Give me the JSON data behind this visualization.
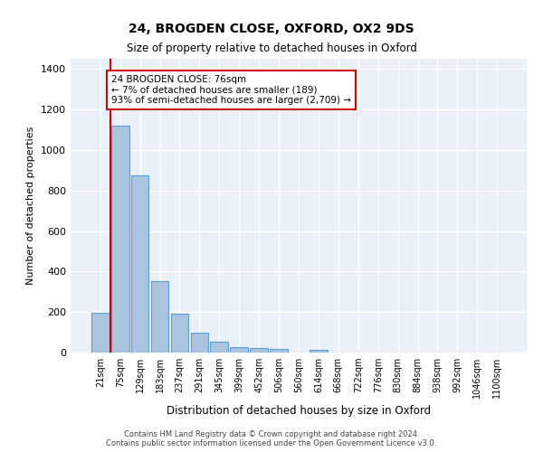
{
  "title": "24, BROGDEN CLOSE, OXFORD, OX2 9DS",
  "subtitle": "Size of property relative to detached houses in Oxford",
  "xlabel": "Distribution of detached houses by size in Oxford",
  "ylabel": "Number of detached properties",
  "footer_line1": "Contains HM Land Registry data © Crown copyright and database right 2024.",
  "footer_line2": "Contains public sector information licensed under the Open Government Licence v3.0.",
  "categories": [
    "21sqm",
    "75sqm",
    "129sqm",
    "183sqm",
    "237sqm",
    "291sqm",
    "345sqm",
    "399sqm",
    "452sqm",
    "506sqm",
    "560sqm",
    "614sqm",
    "668sqm",
    "722sqm",
    "776sqm",
    "830sqm",
    "884sqm",
    "938sqm",
    "992sqm",
    "1046sqm",
    "1100sqm"
  ],
  "values": [
    197,
    1120,
    875,
    353,
    192,
    100,
    52,
    25,
    22,
    17,
    0,
    14,
    0,
    0,
    0,
    0,
    0,
    0,
    0,
    0,
    0
  ],
  "bar_color": "#aac4e0",
  "bar_edge_color": "#5a9fd4",
  "background_color": "#eaf0f8",
  "grid_color": "#ffffff",
  "vline_color": "#cc0000",
  "annotation_text": "24 BROGDEN CLOSE: 76sqm\n← 7% of detached houses are smaller (189)\n93% of semi-detached houses are larger (2,709) →",
  "annotation_box_color": "#cc0000",
  "ylim": [
    0,
    1450
  ],
  "yticks": [
    0,
    200,
    400,
    600,
    800,
    1000,
    1200,
    1400
  ]
}
